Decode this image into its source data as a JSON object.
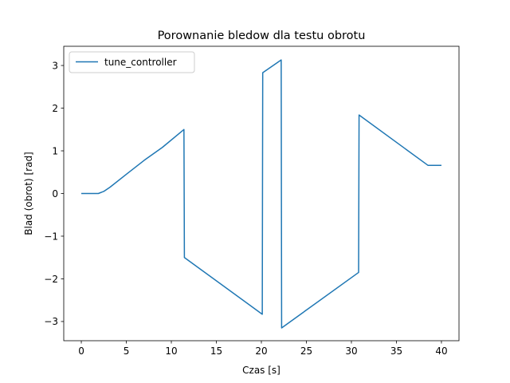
{
  "chart_data": {
    "type": "line",
    "title": "Porownanie bledow dla testu obrotu",
    "xlabel": "Czas [s]",
    "ylabel": "Blad (obrot) [rad]",
    "xlim": [
      -1.95,
      41.95
    ],
    "ylim": [
      -3.45,
      3.45
    ],
    "xticks": [
      0,
      5,
      10,
      15,
      20,
      25,
      30,
      35,
      40
    ],
    "yticks": [
      -3,
      -2,
      -1,
      0,
      1,
      2,
      3
    ],
    "xtick_labels": [
      "0",
      "5",
      "10",
      "15",
      "20",
      "25",
      "30",
      "35",
      "40"
    ],
    "ytick_labels": [
      "−3",
      "−2",
      "−1",
      "0",
      "1",
      "2",
      "3"
    ],
    "grid": false,
    "legend_position": "top-left",
    "series": [
      {
        "name": "tune_controller",
        "color": "#1f77b4",
        "x": [
          0,
          1.9,
          2.5,
          3.2,
          5.0,
          7.0,
          9.0,
          11.4,
          11.45,
          20.1,
          20.15,
          22.2,
          22.25,
          30.8,
          30.85,
          38.5,
          40.0
        ],
        "y": [
          0.0,
          0.0,
          0.05,
          0.15,
          0.45,
          0.78,
          1.08,
          1.5,
          -1.5,
          -2.83,
          2.83,
          3.13,
          -3.15,
          -1.85,
          1.84,
          0.66,
          0.66
        ]
      }
    ]
  }
}
